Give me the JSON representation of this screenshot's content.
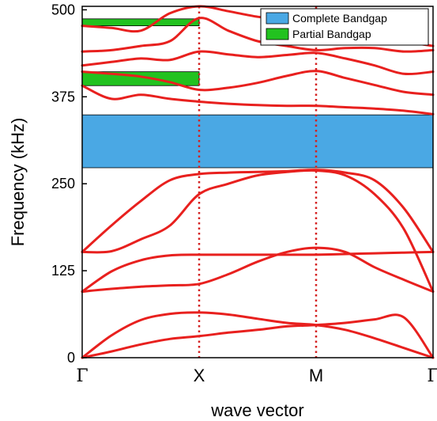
{
  "chart_data": {
    "type": "line",
    "title": "",
    "xlabel": "wave vector",
    "ylabel": "Frequency (kHz)",
    "ylim": [
      0,
      505
    ],
    "yticks": [
      0,
      125,
      250,
      375,
      500
    ],
    "xticks": [
      {
        "label": "Γ",
        "x": 0
      },
      {
        "label": "X",
        "x": 1
      },
      {
        "label": "M",
        "x": 2
      },
      {
        "label": "Γ",
        "x": 3
      }
    ],
    "xlim": [
      0,
      3
    ],
    "grid": false,
    "legend_position": "top-right",
    "legend": [
      {
        "label": "Complete Bandgap",
        "color": "#4aa8e4"
      },
      {
        "label": "Partial Bandgap",
        "color": "#22c21f"
      }
    ],
    "bandgaps": {
      "complete": {
        "from": 273,
        "to": 349,
        "x_from": 0,
        "x_to": 3
      },
      "partial": [
        {
          "from": 391,
          "to": 411,
          "x_from": 0,
          "x_to": 1
        },
        {
          "from": 477,
          "to": 487,
          "x_from": 0,
          "x_to": 1
        }
      ]
    },
    "line_color": "#e8201e",
    "vline_color": "#d42020",
    "series": [
      {
        "x": [
          0,
          0.25,
          0.5,
          0.75,
          1,
          1.25,
          1.5,
          1.75,
          2,
          2.25,
          2.5,
          2.75,
          3
        ],
        "values": [
          0,
          9,
          19,
          27,
          31,
          36,
          40,
          45,
          47,
          50,
          55,
          58,
          0
        ]
      },
      {
        "x": [
          0,
          0.25,
          0.5,
          0.75,
          1,
          1.25,
          1.5,
          1.75,
          2,
          2.25,
          2.5,
          2.75,
          3
        ],
        "values": [
          0,
          32,
          54,
          63,
          65,
          62,
          56,
          50,
          47,
          40,
          28,
          14,
          0
        ]
      },
      {
        "x": [
          0,
          0.25,
          0.5,
          0.75,
          1,
          1.25,
          1.5,
          1.75,
          2,
          2.25,
          2.5,
          2.75,
          3
        ],
        "values": [
          95,
          99,
          102,
          104,
          106,
          120,
          138,
          152,
          158,
          152,
          130,
          112,
          95
        ]
      },
      {
        "x": [
          0,
          0.25,
          0.5,
          0.75,
          1,
          1.25,
          1.5,
          1.75,
          2,
          2.25,
          2.5,
          2.75,
          3
        ],
        "values": [
          95,
          124,
          140,
          147,
          148,
          148,
          148,
          148,
          148,
          149,
          150,
          151,
          152
        ]
      },
      {
        "x": [
          0,
          0.25,
          0.5,
          0.75,
          1,
          1.25,
          1.5,
          1.75,
          2,
          2.25,
          2.5,
          2.75,
          3
        ],
        "values": [
          152,
          153,
          170,
          190,
          235,
          250,
          262,
          267,
          269,
          262,
          235,
          185,
          95
        ]
      },
      {
        "x": [
          0,
          0.25,
          0.5,
          0.75,
          1,
          1.25,
          1.5,
          1.75,
          2,
          2.25,
          2.5,
          2.75,
          3
        ],
        "values": [
          152,
          190,
          225,
          255,
          264,
          266,
          267,
          268,
          270,
          266,
          255,
          215,
          152
        ]
      },
      {
        "x": [
          0,
          0.25,
          0.5,
          0.75,
          1,
          1.25,
          1.5,
          1.75,
          2,
          2.25,
          2.5,
          2.75,
          3
        ],
        "values": [
          391,
          372,
          378,
          372,
          368,
          365,
          363,
          362,
          362,
          360,
          358,
          355,
          350
        ]
      },
      {
        "x": [
          0,
          0.25,
          0.5,
          0.75,
          1,
          1.25,
          1.5,
          1.75,
          2,
          2.25,
          2.5,
          2.75,
          3
        ],
        "values": [
          411,
          408,
          404,
          396,
          385,
          388,
          395,
          405,
          412,
          402,
          392,
          382,
          378
        ]
      },
      {
        "x": [
          0,
          0.25,
          0.5,
          0.75,
          1,
          1.25,
          1.5,
          1.75,
          2,
          2.25,
          2.5,
          2.75,
          3
        ],
        "values": [
          420,
          425,
          430,
          428,
          440,
          436,
          432,
          435,
          438,
          430,
          420,
          408,
          411
        ]
      },
      {
        "x": [
          0,
          0.25,
          0.5,
          0.75,
          1,
          1.25,
          1.5,
          1.75,
          2,
          2.25,
          2.5,
          2.75,
          3
        ],
        "values": [
          440,
          442,
          448,
          455,
          488,
          470,
          455,
          448,
          442,
          445,
          445,
          440,
          442
        ]
      },
      {
        "x": [
          0,
          0.25,
          0.5,
          0.75,
          1,
          1.25,
          1.5,
          1.75,
          2,
          2.25,
          2.5,
          2.75,
          3
        ],
        "values": [
          477,
          474,
          470,
          495,
          505,
          498,
          490,
          486,
          480,
          470,
          465,
          455,
          448
        ]
      }
    ]
  }
}
